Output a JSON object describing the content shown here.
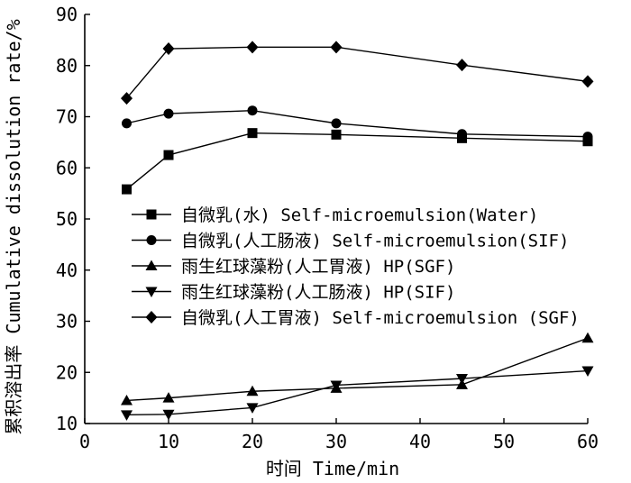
{
  "chart_data": {
    "type": "line",
    "xlabel": "时间 Time/min",
    "ylabel": "累积溶出率 Cumulative dissolution rate/%",
    "xlim": [
      0,
      60
    ],
    "ylim": [
      10,
      90
    ],
    "xticks": [
      0,
      10,
      20,
      30,
      40,
      50,
      60
    ],
    "yticks": [
      10,
      20,
      30,
      40,
      50,
      60,
      70,
      80,
      90
    ],
    "grid": false,
    "legend_position": "center-right",
    "series": [
      {
        "name": "自微乳(水) Self-microemulsion(Water)",
        "marker": "square",
        "x": [
          5,
          10,
          20,
          30,
          45,
          60
        ],
        "y": [
          55.8,
          62.5,
          66.8,
          66.5,
          65.8,
          65.2
        ]
      },
      {
        "name": "自微乳(人工肠液) Self-microemulsion(SIF)",
        "marker": "circle",
        "x": [
          5,
          10,
          20,
          30,
          45,
          60
        ],
        "y": [
          68.7,
          70.6,
          71.2,
          68.7,
          66.6,
          66.1
        ]
      },
      {
        "name": "雨生红球藻粉(人工胃液) HP(SGF)",
        "marker": "triangle-up",
        "x": [
          5,
          10,
          20,
          30,
          45,
          60
        ],
        "y": [
          14.5,
          15.0,
          16.3,
          16.9,
          17.6,
          26.7
        ]
      },
      {
        "name": "雨生红球藻粉(人工肠液) HP(SIF)",
        "marker": "triangle-down",
        "x": [
          5,
          10,
          20,
          30,
          45,
          60
        ],
        "y": [
          11.7,
          11.8,
          13.1,
          17.5,
          18.8,
          20.3
        ]
      },
      {
        "name": "自微乳(人工胃液) Self-microemulsion (SGF)",
        "marker": "diamond",
        "x": [
          5,
          10,
          20,
          30,
          45,
          60
        ],
        "y": [
          73.6,
          83.3,
          83.6,
          83.6,
          80.1,
          76.9
        ]
      }
    ]
  }
}
